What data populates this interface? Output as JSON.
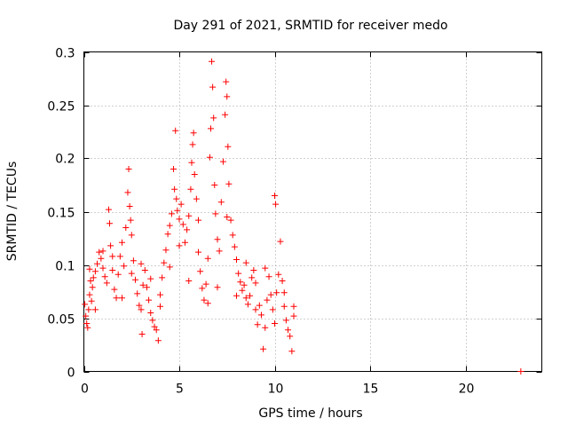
{
  "chart_data": {
    "type": "scatter",
    "title": "Day 291 of 2021, SRMTID for receiver medo",
    "xlabel": "GPS time / hours",
    "ylabel": "SRMTID / TECUs",
    "xlim": [
      0,
      24
    ],
    "ylim": [
      0,
      0.3
    ],
    "x_ticks": [
      0,
      5,
      10,
      15,
      20
    ],
    "x_tick_labels": [
      "0",
      "5",
      "10",
      "15",
      "20"
    ],
    "y_ticks": [
      0,
      0.05,
      0.1,
      0.15,
      0.2,
      0.25,
      0.3
    ],
    "y_tick_labels": [
      "0",
      "0.05",
      "0.1",
      "0.15",
      "0.2",
      "0.25",
      "0.3"
    ],
    "grid": true,
    "marker": "+",
    "color": "#ff0000",
    "series": [
      {
        "name": "SRMTID",
        "points": [
          [
            0.05,
            0.063
          ],
          [
            0.1,
            0.052
          ],
          [
            0.15,
            0.045
          ],
          [
            0.2,
            0.041
          ],
          [
            0.25,
            0.058
          ],
          [
            0.3,
            0.072
          ],
          [
            0.35,
            0.085
          ],
          [
            0.4,
            0.066
          ],
          [
            0.45,
            0.079
          ],
          [
            0.5,
            0.088
          ],
          [
            0.6,
            0.094
          ],
          [
            0.7,
            0.101
          ],
          [
            0.8,
            0.112
          ],
          [
            0.9,
            0.106
          ],
          [
            1.0,
            0.097
          ],
          [
            1.1,
            0.089
          ],
          [
            1.2,
            0.083
          ],
          [
            1.3,
            0.152
          ],
          [
            1.35,
            0.139
          ],
          [
            1.4,
            0.118
          ],
          [
            1.5,
            0.095
          ],
          [
            1.6,
            0.077
          ],
          [
            1.7,
            0.069
          ],
          [
            1.8,
            0.091
          ],
          [
            1.9,
            0.108
          ],
          [
            2.0,
            0.121
          ],
          [
            2.1,
            0.099
          ],
          [
            2.2,
            0.135
          ],
          [
            2.3,
            0.168
          ],
          [
            2.35,
            0.19
          ],
          [
            2.4,
            0.155
          ],
          [
            2.45,
            0.142
          ],
          [
            2.5,
            0.128
          ],
          [
            2.6,
            0.104
          ],
          [
            2.7,
            0.086
          ],
          [
            2.8,
            0.073
          ],
          [
            2.9,
            0.062
          ],
          [
            3.0,
            0.058
          ],
          [
            3.05,
            0.035
          ],
          [
            3.1,
            0.081
          ],
          [
            3.2,
            0.095
          ],
          [
            3.3,
            0.079
          ],
          [
            3.4,
            0.067
          ],
          [
            3.5,
            0.055
          ],
          [
            3.6,
            0.048
          ],
          [
            3.7,
            0.042
          ],
          [
            3.8,
            0.039
          ],
          [
            3.9,
            0.029
          ],
          [
            4.0,
            0.061
          ],
          [
            4.1,
            0.088
          ],
          [
            4.2,
            0.102
          ],
          [
            4.3,
            0.114
          ],
          [
            4.4,
            0.129
          ],
          [
            4.5,
            0.137
          ],
          [
            4.6,
            0.148
          ],
          [
            4.7,
            0.19
          ],
          [
            4.75,
            0.171
          ],
          [
            4.8,
            0.226
          ],
          [
            4.85,
            0.162
          ],
          [
            4.9,
            0.151
          ],
          [
            5.0,
            0.143
          ],
          [
            5.1,
            0.157
          ],
          [
            5.2,
            0.138
          ],
          [
            5.3,
            0.121
          ],
          [
            5.4,
            0.133
          ],
          [
            5.5,
            0.146
          ],
          [
            5.6,
            0.171
          ],
          [
            5.65,
            0.196
          ],
          [
            5.7,
            0.213
          ],
          [
            5.75,
            0.224
          ],
          [
            5.8,
            0.185
          ],
          [
            5.9,
            0.162
          ],
          [
            6.0,
            0.112
          ],
          [
            6.1,
            0.094
          ],
          [
            6.2,
            0.078
          ],
          [
            6.3,
            0.067
          ],
          [
            6.4,
            0.082
          ],
          [
            6.5,
            0.106
          ],
          [
            6.6,
            0.201
          ],
          [
            6.65,
            0.228
          ],
          [
            6.7,
            0.291
          ],
          [
            6.75,
            0.267
          ],
          [
            6.8,
            0.238
          ],
          [
            6.85,
            0.175
          ],
          [
            6.9,
            0.148
          ],
          [
            7.0,
            0.124
          ],
          [
            7.1,
            0.113
          ],
          [
            7.2,
            0.159
          ],
          [
            7.3,
            0.197
          ],
          [
            7.4,
            0.241
          ],
          [
            7.45,
            0.272
          ],
          [
            7.5,
            0.258
          ],
          [
            7.55,
            0.211
          ],
          [
            7.6,
            0.176
          ],
          [
            7.7,
            0.142
          ],
          [
            7.8,
            0.128
          ],
          [
            7.9,
            0.117
          ],
          [
            8.0,
            0.105
          ],
          [
            8.1,
            0.092
          ],
          [
            8.2,
            0.084
          ],
          [
            8.3,
            0.076
          ],
          [
            8.4,
            0.081
          ],
          [
            8.5,
            0.069
          ],
          [
            8.6,
            0.063
          ],
          [
            8.7,
            0.071
          ],
          [
            8.8,
            0.088
          ],
          [
            8.9,
            0.095
          ],
          [
            9.0,
            0.058
          ],
          [
            9.1,
            0.044
          ],
          [
            9.2,
            0.062
          ],
          [
            9.3,
            0.053
          ],
          [
            9.4,
            0.021
          ],
          [
            9.5,
            0.041
          ],
          [
            9.6,
            0.067
          ],
          [
            9.7,
            0.089
          ],
          [
            9.8,
            0.072
          ],
          [
            9.9,
            0.058
          ],
          [
            10.0,
            0.165
          ],
          [
            10.05,
            0.157
          ],
          [
            10.1,
            0.074
          ],
          [
            10.2,
            0.091
          ],
          [
            10.3,
            0.122
          ],
          [
            10.4,
            0.085
          ],
          [
            10.5,
            0.061
          ],
          [
            10.6,
            0.048
          ],
          [
            10.7,
            0.039
          ],
          [
            10.8,
            0.033
          ],
          [
            10.9,
            0.019
          ],
          [
            11.0,
            0.052
          ],
          [
            0.3,
            0.096
          ],
          [
            0.6,
            0.058
          ],
          [
            1.0,
            0.113
          ],
          [
            1.5,
            0.108
          ],
          [
            2.0,
            0.069
          ],
          [
            2.5,
            0.092
          ],
          [
            3.0,
            0.101
          ],
          [
            3.5,
            0.087
          ],
          [
            4.0,
            0.072
          ],
          [
            4.5,
            0.098
          ],
          [
            5.0,
            0.118
          ],
          [
            5.5,
            0.085
          ],
          [
            6.0,
            0.142
          ],
          [
            6.5,
            0.064
          ],
          [
            7.0,
            0.079
          ],
          [
            7.5,
            0.145
          ],
          [
            8.0,
            0.071
          ],
          [
            8.5,
            0.102
          ],
          [
            9.0,
            0.083
          ],
          [
            9.5,
            0.097
          ],
          [
            10.0,
            0.045
          ],
          [
            10.5,
            0.074
          ],
          [
            11.0,
            0.061
          ],
          [
            22.9,
            0.0
          ]
        ]
      }
    ]
  }
}
